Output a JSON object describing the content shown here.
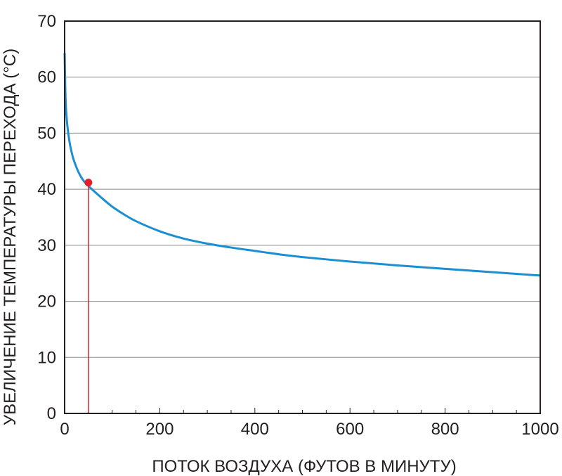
{
  "chart_data": {
    "type": "line",
    "xlabel": "ПОТОК ВОЗДУХА (ФУТОВ В МИНУТУ)",
    "ylabel": "УВЕЛИЧЕНИЕ ТЕМПЕРАТУРЫ ПЕРЕХОДА (°С)",
    "xlim": [
      0,
      1000
    ],
    "ylim": [
      0,
      70
    ],
    "x_ticks": [
      0,
      200,
      400,
      600,
      800,
      1000
    ],
    "x_tick_labels": [
      "0",
      "200",
      "400",
      "600",
      "800",
      "1000"
    ],
    "y_ticks": [
      0,
      10,
      20,
      30,
      40,
      50,
      60,
      70
    ],
    "y_tick_labels": [
      "0",
      "10",
      "20",
      "30",
      "40",
      "50",
      "60",
      "70"
    ],
    "grid": "horizontal",
    "series": [
      {
        "color": "#1b8fd2",
        "x": [
          0,
          2,
          5,
          10,
          15,
          20,
          30,
          40,
          50,
          60,
          80,
          100,
          125,
          150,
          200,
          250,
          300,
          350,
          400,
          450,
          500,
          600,
          700,
          800,
          900,
          1000
        ],
        "y": [
          64.3,
          56.0,
          52.0,
          48.6,
          46.5,
          45.0,
          42.9,
          41.5,
          40.6,
          39.8,
          38.3,
          36.9,
          35.5,
          34.3,
          32.5,
          31.2,
          30.3,
          29.6,
          29.0,
          28.4,
          27.9,
          27.1,
          26.4,
          25.8,
          25.2,
          24.6
        ]
      }
    ],
    "marker": {
      "x": 50,
      "y": 41.2,
      "color": "#e3202a",
      "drop_line": true
    }
  }
}
